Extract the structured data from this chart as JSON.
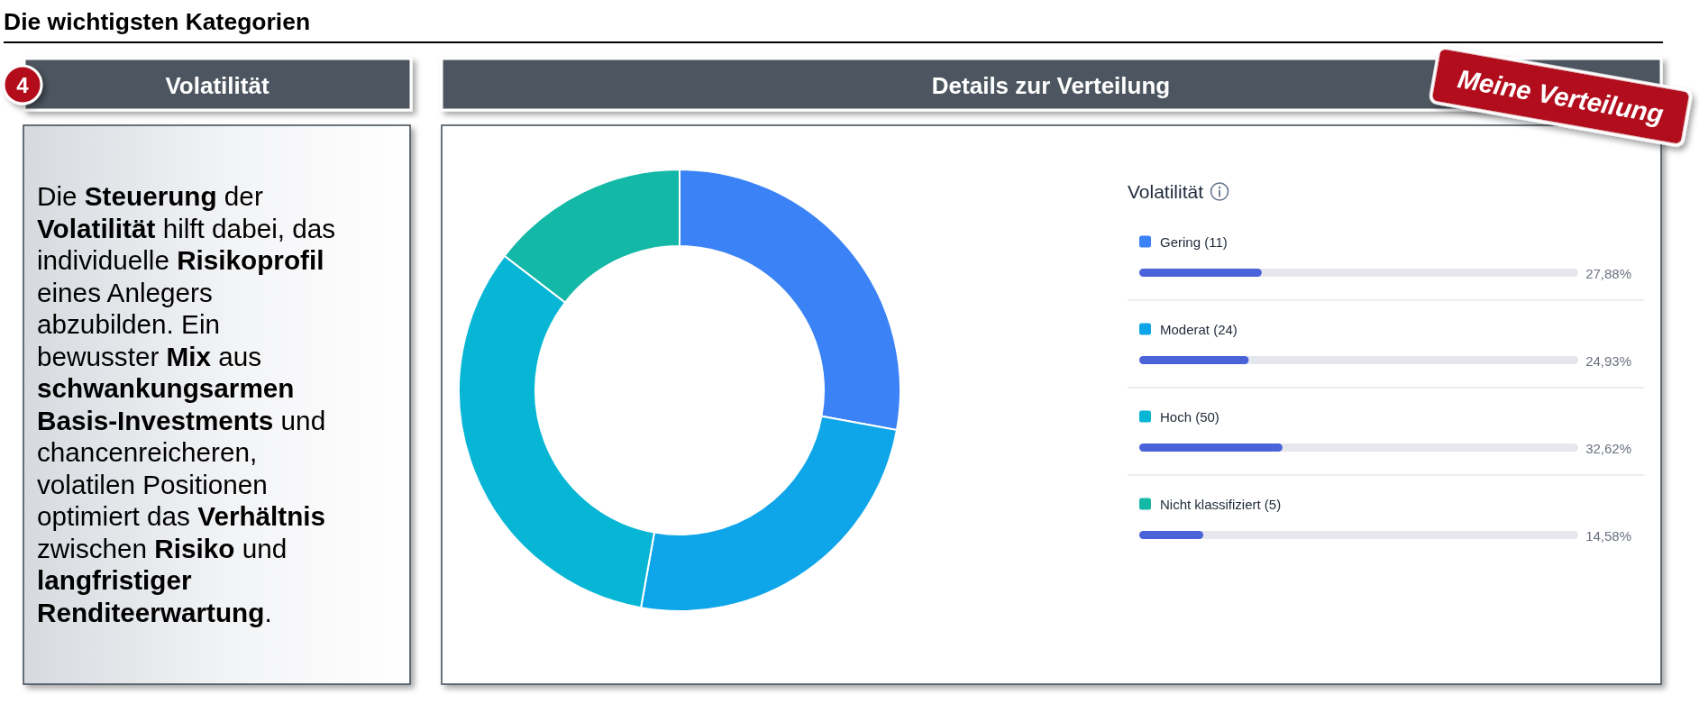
{
  "chart_data": [
    {
      "type": "other",
      "title": "Die wichtigsten Kategorien",
      "subtitle": "Volatilität",
      "annotations": [
        "4",
        "Die ",
        "Steuerung",
        " der ",
        "Volatilität",
        " hilft dabei, das individuelle ",
        "Risikoprofil",
        " eines Anlegers abzubilden. Ein bewusster ",
        "Mix",
        " aus ",
        "schwankungsarmen Basis-Investments",
        " und chancenreicheren, volatilen Positionen optimiert das ",
        "Verhältnis",
        " zwischen ",
        "Risiko",
        " und ",
        "langfristiger Renditeerwartung",
        "."
      ]
    },
    {
      "type": "donut",
      "title": "Details zur Verteilung",
      "legend_title": "Volatilität",
      "categories": [
        "Gering (11)",
        "Moderat (24)",
        "Hoch (50)",
        "Nicht klassifiziert (5)"
      ],
      "values": [
        27.88,
        24.93,
        32.62,
        14.58
      ],
      "colors": [
        "#3b82f6",
        "#0ea5e9",
        "#06b6d4",
        "#14b8a6"
      ],
      "legend": "right",
      "annotations": [
        "Meine Verteilung"
      ]
    },
    {
      "type": "bar",
      "orientation": "horizontal",
      "categories": [
        null,
        null,
        null,
        null
      ],
      "values": [
        27.88,
        24.93,
        32.62,
        14.58
      ],
      "value_labels": [
        "27,88%",
        "24,93%",
        "32,62%",
        "14,58%"
      ],
      "color": "#4a63d9",
      "xlim": [
        0,
        100
      ]
    }
  ]
}
